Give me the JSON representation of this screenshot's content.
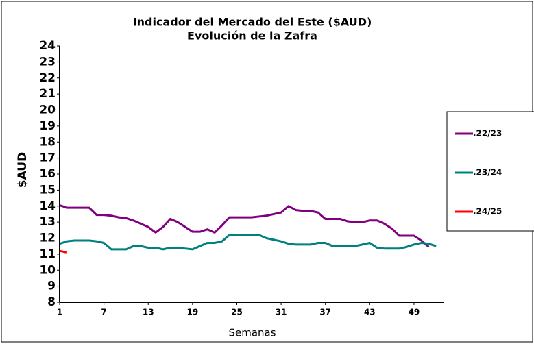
{
  "chart_data": {
    "type": "line",
    "title": "Indicador del Mercado del Este ($AUD)",
    "subtitle": "Evolución de la Zafra",
    "x_label": "Semanas",
    "y_label": "$AUD",
    "x": [
      1,
      2,
      3,
      4,
      5,
      6,
      7,
      8,
      9,
      10,
      11,
      12,
      13,
      14,
      15,
      16,
      17,
      18,
      19,
      20,
      21,
      22,
      23,
      24,
      25,
      26,
      27,
      28,
      29,
      30,
      31,
      32,
      33,
      34,
      35,
      36,
      37,
      38,
      39,
      40,
      41,
      42,
      43,
      44,
      45,
      46,
      47,
      48,
      49,
      50,
      51,
      52
    ],
    "series": [
      {
        "name": ".22/23",
        "color": "#800080",
        "values": [
          14.05,
          13.9,
          13.9,
          13.9,
          13.9,
          13.45,
          13.45,
          13.4,
          13.3,
          13.25,
          13.1,
          12.9,
          12.7,
          12.35,
          12.7,
          13.2,
          13.0,
          12.7,
          12.4,
          12.4,
          12.55,
          12.35,
          12.8,
          13.3,
          13.3,
          13.3,
          13.3,
          13.35,
          13.4,
          13.5,
          13.6,
          14.0,
          13.75,
          13.7,
          13.7,
          13.6,
          13.2,
          13.2,
          13.2,
          13.05,
          13.0,
          13.0,
          13.1,
          13.1,
          12.9,
          12.6,
          12.15,
          12.15,
          12.15,
          11.85,
          11.45,
          null
        ]
      },
      {
        "name": ".23/24",
        "color": "#008080",
        "values": [
          11.65,
          11.8,
          11.85,
          11.85,
          11.85,
          11.8,
          11.7,
          11.3,
          11.3,
          11.3,
          11.5,
          11.5,
          11.4,
          11.4,
          11.3,
          11.4,
          11.4,
          11.35,
          11.3,
          11.5,
          11.7,
          11.7,
          11.8,
          12.2,
          12.2,
          12.2,
          12.2,
          12.2,
          12.0,
          11.9,
          11.8,
          11.65,
          11.6,
          11.6,
          11.6,
          11.7,
          11.7,
          11.5,
          11.5,
          11.5,
          11.5,
          11.6,
          11.7,
          11.4,
          11.35,
          11.35,
          11.35,
          11.45,
          11.6,
          11.7,
          11.65,
          11.5
        ]
      },
      {
        "name": ".24/25",
        "color": "#ff0000",
        "values": [
          11.2,
          11.1,
          null,
          null,
          null,
          null,
          null,
          null,
          null,
          null,
          null,
          null,
          null,
          null,
          null,
          null,
          null,
          null,
          null,
          null,
          null,
          null,
          null,
          null,
          null,
          null,
          null,
          null,
          null,
          null,
          null,
          null,
          null,
          null,
          null,
          null,
          null,
          null,
          null,
          null,
          null,
          null,
          null,
          null,
          null,
          null,
          null,
          null,
          null,
          null,
          null,
          null
        ]
      }
    ],
    "xlim": [
      1,
      53
    ],
    "xticks": [
      1,
      7,
      13,
      19,
      25,
      31,
      37,
      43,
      49
    ],
    "ylim": [
      8,
      24
    ],
    "yticks": [
      8,
      9,
      10,
      11,
      12,
      13,
      14,
      15,
      16,
      17,
      18,
      19,
      20,
      21,
      22,
      23,
      24
    ],
    "legend": "right",
    "grid": false
  }
}
